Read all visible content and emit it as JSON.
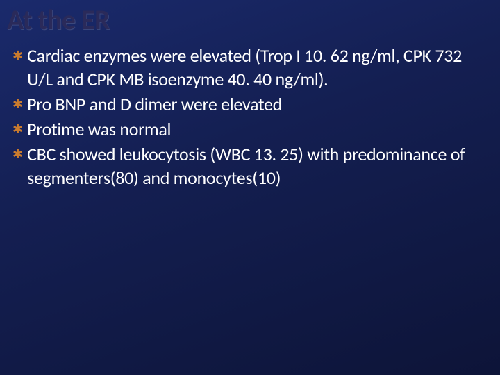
{
  "slide": {
    "title": "At the ER",
    "title_color": "#2a2a5a",
    "title_fontsize": 40,
    "background_gradient": [
      "#1a2a6c",
      "#141f52",
      "#0d1438"
    ],
    "bullet_icon_color": "#c97b2e",
    "bullet_text_color": "#ffffff",
    "bullet_fontsize": 26,
    "bullets": [
      {
        "text": "Cardiac enzymes were elevated (Trop I 10. 62 ng/ml, CPK 732 U/L and CPK MB isoenzyme 40. 40 ng/ml).",
        "leading_space": false
      },
      {
        "text": " Pro BNP and D dimer were elevated",
        "leading_space": true
      },
      {
        "text": "Protime was normal",
        "leading_space": false
      },
      {
        "text": " CBC showed leukocytosis (WBC 13. 25) with predominance of segmenters(80) and monocytes(10)",
        "leading_space": true
      }
    ]
  }
}
